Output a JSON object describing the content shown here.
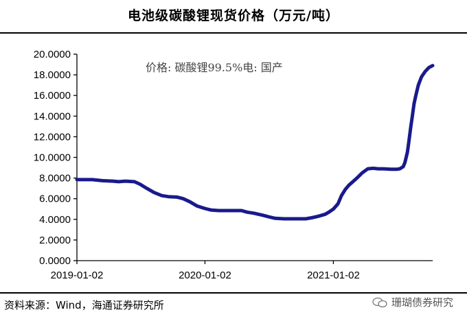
{
  "header": {
    "title": "电池级碳酸锂现货价格（万元/吨）"
  },
  "footer": {
    "source": "资料来源：Wind，海通证券研究所",
    "watermark": "珊瑚债券研究",
    "watermark_icon": "wechat-icon"
  },
  "chart_data": {
    "type": "line",
    "title": "电池级碳酸锂现货价格（万元/吨）",
    "xlabel": "",
    "ylabel": "",
    "annotation": "价格: 碳酸锂99.5%电: 国产",
    "ylim": [
      0,
      20
    ],
    "y_ticks": [
      0,
      2,
      4,
      6,
      8,
      10,
      12,
      14,
      16,
      18,
      20
    ],
    "y_tick_labels": [
      "0.0000",
      "2.0000",
      "4.0000",
      "6.0000",
      "8.0000",
      "10.0000",
      "12.0000",
      "14.0000",
      "16.0000",
      "18.0000",
      "20.0000"
    ],
    "x_tick_labels": [
      "2019-01-02",
      "2020-01-02",
      "2021-01-02"
    ],
    "xlim": [
      "2019-01-02",
      "2021-10-12"
    ],
    "grid": false,
    "line_color": "#1a1a8c",
    "x": [
      "2019-01-02",
      "2019-02-15",
      "2019-03-15",
      "2019-04-15",
      "2019-05-01",
      "2019-05-20",
      "2019-06-15",
      "2019-07-01",
      "2019-07-20",
      "2019-08-10",
      "2019-09-01",
      "2019-09-20",
      "2019-10-15",
      "2019-11-01",
      "2019-11-20",
      "2019-12-10",
      "2020-01-02",
      "2020-01-20",
      "2020-02-10",
      "2020-03-15",
      "2020-04-15",
      "2020-05-01",
      "2020-05-20",
      "2020-06-15",
      "2020-07-01",
      "2020-07-20",
      "2020-08-15",
      "2020-09-15",
      "2020-10-15",
      "2020-11-01",
      "2020-11-20",
      "2020-12-10",
      "2020-12-20",
      "2021-01-02",
      "2021-01-15",
      "2021-01-25",
      "2021-02-05",
      "2021-02-15",
      "2021-02-25",
      "2021-03-10",
      "2021-03-25",
      "2021-04-10",
      "2021-04-25",
      "2021-05-10",
      "2021-05-25",
      "2021-06-15",
      "2021-07-01",
      "2021-07-10",
      "2021-07-20",
      "2021-07-25",
      "2021-08-01",
      "2021-08-05",
      "2021-08-10",
      "2021-08-15",
      "2021-08-20",
      "2021-08-25",
      "2021-09-01",
      "2021-09-10",
      "2021-09-20",
      "2021-10-01",
      "2021-10-12"
    ],
    "series": [
      {
        "values": [
          7.85,
          7.85,
          7.75,
          7.7,
          7.65,
          7.7,
          7.65,
          7.4,
          7.0,
          6.6,
          6.3,
          6.2,
          6.15,
          6.0,
          5.7,
          5.3,
          5.05,
          4.9,
          4.85,
          4.85,
          4.85,
          4.7,
          4.6,
          4.4,
          4.25,
          4.1,
          4.05,
          4.05,
          4.05,
          4.15,
          4.3,
          4.5,
          4.7,
          5.0,
          5.5,
          6.3,
          6.9,
          7.3,
          7.6,
          8.0,
          8.5,
          8.9,
          8.95,
          8.9,
          8.9,
          8.85,
          8.85,
          8.9,
          9.1,
          9.5,
          10.5,
          11.5,
          12.8,
          14.0,
          15.2,
          16.0,
          17.0,
          17.8,
          18.3,
          18.7,
          18.9
        ]
      }
    ]
  }
}
